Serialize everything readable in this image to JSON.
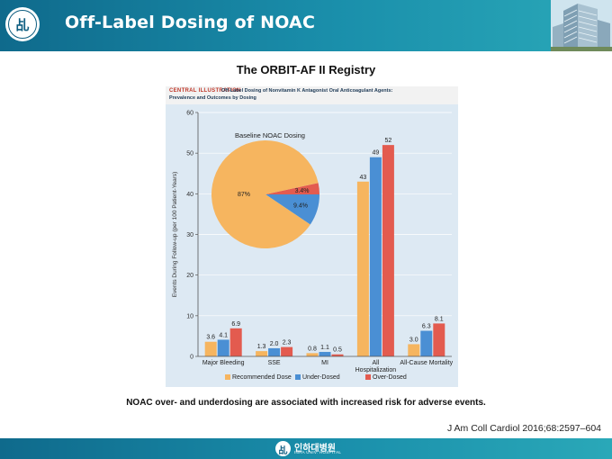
{
  "header": {
    "title": "Off-Label Dosing of NOAC"
  },
  "subtitle": "The ORBIT-AF II Registry",
  "figure_banner": {
    "label": "CENTRAL ILLUSTRATION",
    "line1": "Off-Label Dosing of Nonvitamin K Antagonist Oral Anticoagulant Agents:",
    "line2": "Prevalence and Outcomes by Dosing"
  },
  "caption": "NOAC over- and underdosing are associated with increased risk for adverse events.",
  "citation": "J Am Coll Cardiol 2016;68:2597–604",
  "footer": {
    "name": "인하대병원",
    "sub": "INHA UNIV. HOSPITAL"
  },
  "colors": {
    "recommended": "#f6b55f",
    "under": "#4a8fd4",
    "over": "#e35b4f",
    "plot_bg": "#dde9f3"
  },
  "chart_data": [
    {
      "type": "bar",
      "categories": [
        "Major Bleeding",
        "SSE",
        "MI",
        "All Hospitalization",
        "All-Cause Mortality"
      ],
      "category_lines": [
        [
          "Major Bleeding"
        ],
        [
          "SSE"
        ],
        [
          "MI"
        ],
        [
          "All",
          "Hospitalization"
        ],
        [
          "All-Cause Mortality"
        ]
      ],
      "series": [
        {
          "name": "Recommended Dose",
          "values": [
            3.6,
            1.3,
            0.8,
            43,
            3.0
          ]
        },
        {
          "name": "Under-Dosed",
          "values": [
            4.1,
            2.0,
            1.1,
            49,
            6.3
          ]
        },
        {
          "name": "Over-Dosed",
          "values": [
            6.9,
            2.3,
            0.5,
            52,
            8.1
          ]
        }
      ],
      "labels": [
        [
          "3.6",
          "1.3",
          "0.8",
          "43",
          "3.0"
        ],
        [
          "4.1",
          "2.0",
          "1.1",
          "49",
          "6.3"
        ],
        [
          "6.9",
          "2.3",
          "0.5",
          "52",
          "8.1"
        ]
      ],
      "ylabel": "Events During Follow-up (per 100 Patient-Years)",
      "ylim": [
        0,
        60
      ],
      "yticks": [
        0,
        10,
        20,
        30,
        40,
        50,
        60
      ],
      "legend_position": "bottom"
    },
    {
      "type": "pie",
      "title": "Baseline NOAC Dosing",
      "slices": [
        {
          "name": "Recommended Dose",
          "value": 87,
          "label": "87%"
        },
        {
          "name": "Under-Dosed",
          "value": 9.4,
          "label": "9.4%"
        },
        {
          "name": "Over-Dosed",
          "value": 3.4,
          "label": "3.4%"
        }
      ]
    }
  ]
}
